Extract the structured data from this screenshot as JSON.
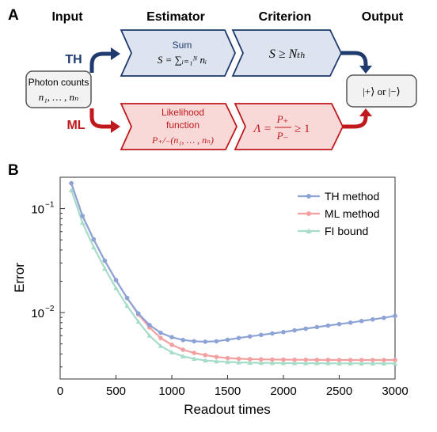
{
  "panel_a": {
    "label": "A",
    "headers": {
      "input": "Input",
      "estimator": "Estimator",
      "criterion": "Criterion",
      "output": "Output"
    },
    "input_box": {
      "line1": "Photon counts",
      "line2": "n₁, … , nₙ"
    },
    "th": {
      "label": "TH",
      "estimator_title": "Sum",
      "estimator_formula": "S = ∑ᵢ₌₁ᴺ nᵢ",
      "criterion": "S ≥ Nₜₕ"
    },
    "ml": {
      "label": "ML",
      "estimator_line1": "Likelihood",
      "estimator_line2": "function",
      "estimator_formula": "P₊/₋(n₁, … , nₙ)",
      "criterion_lhs": "Λ =",
      "criterion_num": "P₊",
      "criterion_den": "P₋",
      "criterion_rhs": "≥ 1"
    },
    "output_box": "|+⟩ or |−⟩",
    "colors": {
      "th_fill": "#dde3ef",
      "th_stroke": "#1f3a6e",
      "th_text": "#1f3a6e",
      "ml_fill": "#f9d8d8",
      "ml_stroke": "#c0191d",
      "ml_text": "#c0191d",
      "box_fill": "#f2f2f2",
      "box_stroke": "#555555"
    }
  },
  "chart_data": {
    "panel_label": "B",
    "type": "line",
    "xlabel": "Readout times",
    "ylabel": "Error",
    "xlim": [
      0,
      3000
    ],
    "ylim": [
      0.0023,
      0.2
    ],
    "yscale": "log",
    "x_ticks": [
      0,
      500,
      1000,
      1500,
      2000,
      2500,
      3000
    ],
    "x_tick_labels": [
      "0",
      "500",
      "1000",
      "1500",
      "2000",
      "2500",
      "3000"
    ],
    "y_ticks": [
      0.1,
      0.01
    ],
    "y_tick_labels_base": [
      "10",
      "10"
    ],
    "y_tick_labels_exp": [
      "−1",
      "−2"
    ],
    "grid": false,
    "legend_position": "top-right",
    "x": [
      100,
      200,
      300,
      400,
      500,
      600,
      700,
      800,
      900,
      1000,
      1100,
      1200,
      1300,
      1400,
      1500,
      1600,
      1700,
      1800,
      1900,
      2000,
      2100,
      2200,
      2300,
      2400,
      2500,
      2600,
      2700,
      2800,
      2900,
      3000
    ],
    "series": [
      {
        "name": "TH method",
        "color": "#8da3d6",
        "marker": "circle",
        "values": [
          0.175,
          0.085,
          0.0505,
          0.0315,
          0.0205,
          0.0138,
          0.0098,
          0.0076,
          0.0064,
          0.0058,
          0.00545,
          0.0053,
          0.00525,
          0.0053,
          0.00548,
          0.0057,
          0.0059,
          0.0061,
          0.0063,
          0.0065,
          0.00675,
          0.007,
          0.00725,
          0.0075,
          0.00775,
          0.008,
          0.0083,
          0.0086,
          0.0089,
          0.0093
        ]
      },
      {
        "name": "ML method",
        "color": "#f2a0a0",
        "marker": "circle",
        "values": [
          0.175,
          0.085,
          0.0505,
          0.0315,
          0.0205,
          0.0138,
          0.0096,
          0.0072,
          0.0057,
          0.0049,
          0.0044,
          0.0041,
          0.0039,
          0.00375,
          0.00365,
          0.0036,
          0.00357,
          0.00355,
          0.00354,
          0.00353,
          0.00352,
          0.00352,
          0.00351,
          0.00351,
          0.0035,
          0.0035,
          0.0035,
          0.0035,
          0.0035,
          0.0035
        ]
      },
      {
        "name": "FI  bound",
        "color": "#a6dcc8",
        "marker": "triangle",
        "values": [
          0.15,
          0.073,
          0.0425,
          0.0265,
          0.0172,
          0.0116,
          0.0082,
          0.006,
          0.00478,
          0.00415,
          0.0038,
          0.0036,
          0.00347,
          0.0034,
          0.00335,
          0.00332,
          0.0033,
          0.00329,
          0.00328,
          0.00327,
          0.00327,
          0.00326,
          0.00326,
          0.00326,
          0.00325,
          0.00325,
          0.00325,
          0.00325,
          0.00325,
          0.00325
        ]
      }
    ]
  }
}
